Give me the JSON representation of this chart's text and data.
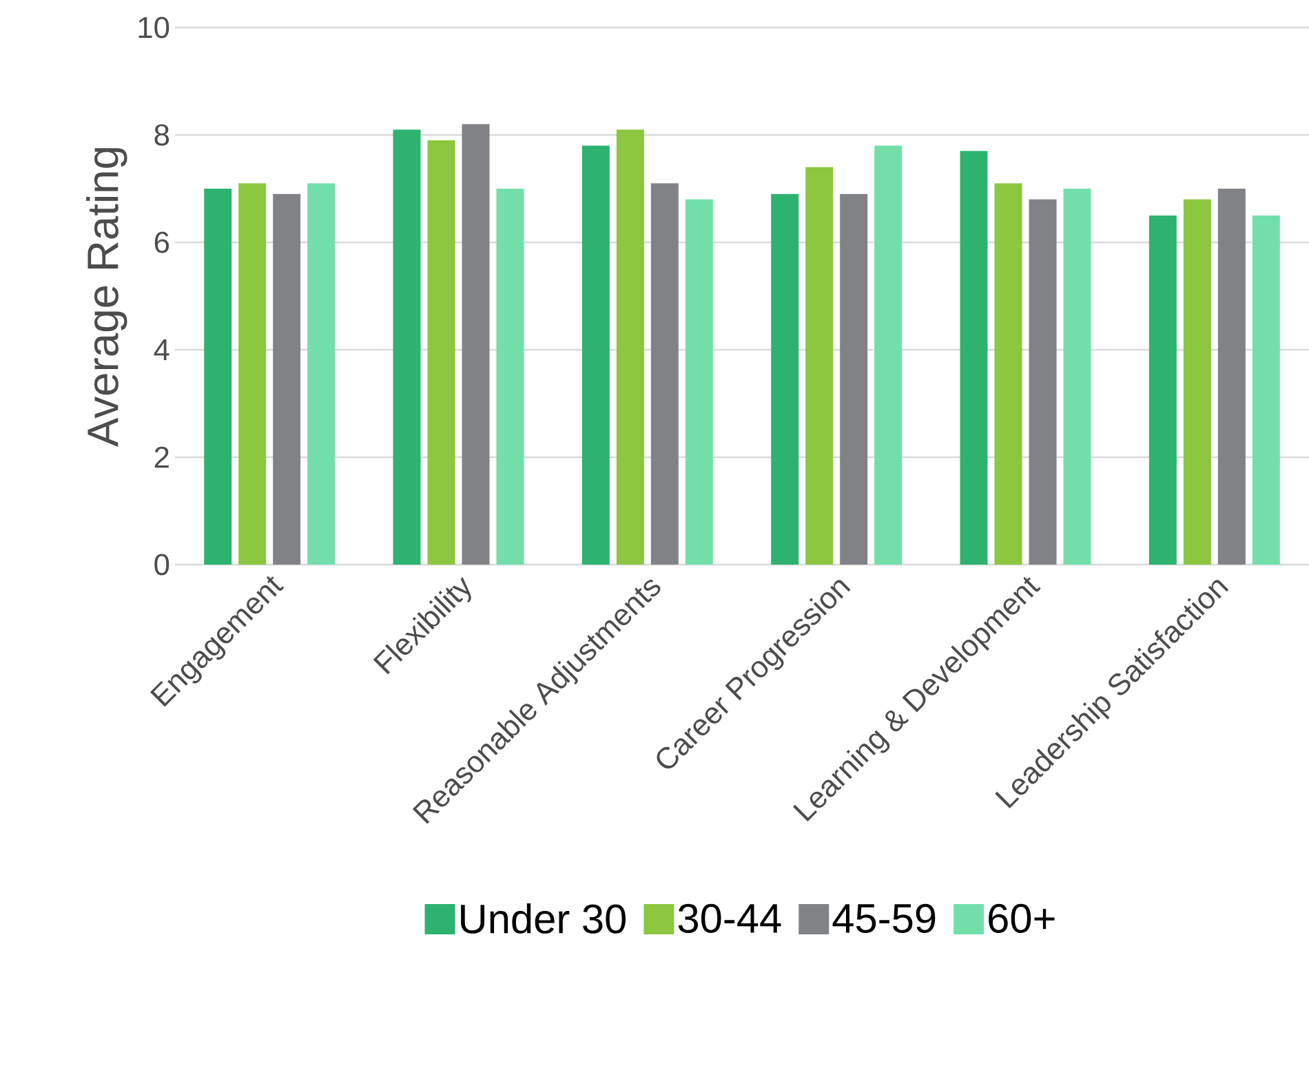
{
  "chart_data": {
    "type": "bar",
    "ylabel": "Average Rating",
    "categories": [
      "Engagement",
      "Flexibility",
      "Reasonable Adjustments",
      "Career Progression",
      "Learning & Development",
      "Leadership Satisfaction"
    ],
    "series": [
      {
        "name": "Under 30",
        "color": "#2db36f",
        "values": [
          7.0,
          8.1,
          7.8,
          6.9,
          7.7,
          6.5
        ]
      },
      {
        "name": "30-44",
        "color": "#8dc63f",
        "values": [
          7.1,
          7.9,
          8.1,
          7.4,
          7.1,
          6.8
        ]
      },
      {
        "name": "45-59",
        "color": "#808285",
        "values": [
          6.9,
          8.2,
          7.1,
          6.9,
          6.8,
          7.0
        ]
      },
      {
        "name": "60+",
        "color": "#72dfaa",
        "values": [
          7.1,
          7.0,
          6.8,
          7.8,
          7.0,
          6.5
        ]
      }
    ],
    "ylim": [
      0,
      10
    ],
    "yticks": [
      0,
      2,
      4,
      6,
      8,
      10
    ],
    "grid": "y",
    "legend": "bottom"
  }
}
